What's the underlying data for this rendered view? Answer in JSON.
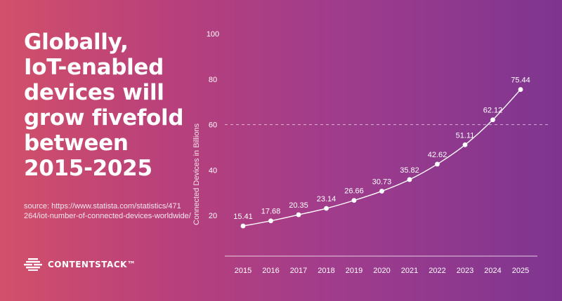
{
  "headline": {
    "lines": [
      "Globally,",
      "IoT-enabled",
      "devices will",
      "grow fivefold",
      "between",
      "2015-2025"
    ]
  },
  "source": {
    "lines": [
      "source: https://www.statista.com/statistics/471",
      "264/iot-number-of-connected-devices-worldwide/"
    ]
  },
  "brand": {
    "name": "CONTENTSTACK™",
    "icon": "contentstack-logo-icon"
  },
  "colors": {
    "text": "#ffffff",
    "background_start": "#d2506a",
    "background_end": "#7e3590"
  },
  "chart_data": {
    "type": "line",
    "title": "",
    "xlabel": "",
    "ylabel": "Connected Devices in Billions",
    "categories": [
      "2015",
      "2016",
      "2017",
      "2018",
      "2019",
      "2020",
      "2021",
      "2022",
      "2023",
      "2024",
      "2025"
    ],
    "series": [
      {
        "values": [
          15.41,
          17.68,
          20.35,
          23.14,
          26.66,
          30.73,
          35.82,
          42.62,
          51.11,
          62.12,
          75.44
        ]
      }
    ],
    "data_labels": [
      "15.41",
      "17.68",
      "20.35",
      "23.14",
      "26.66",
      "30.73",
      "35.82",
      "42.62",
      "51.11",
      "62.12",
      "75.44"
    ],
    "y_ticks": [
      "20",
      "40",
      "60",
      "80",
      "100"
    ],
    "ylim": [
      0,
      100
    ],
    "reference_line": {
      "value": 60,
      "style": "dashed"
    },
    "grid": false,
    "legend": "none"
  }
}
